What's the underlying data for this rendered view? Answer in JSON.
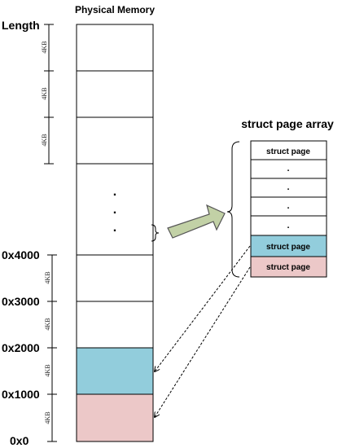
{
  "title": "Physical Memory",
  "addresses": {
    "length": "Length",
    "a4000": "0x4000",
    "a3000": "0x3000",
    "a2000": "0x2000",
    "a1000": "0x1000",
    "a0": "0x0"
  },
  "size_label": "4KB",
  "ellipsis_dot": ".",
  "struct_array": {
    "title": "struct page array",
    "item_label": "struct page",
    "dot": "."
  },
  "colors": {
    "blue": "#92cddc",
    "pink": "#ecc8c8",
    "arrow_fill": "#c2d1a6",
    "arrow_stroke": "#555555"
  }
}
